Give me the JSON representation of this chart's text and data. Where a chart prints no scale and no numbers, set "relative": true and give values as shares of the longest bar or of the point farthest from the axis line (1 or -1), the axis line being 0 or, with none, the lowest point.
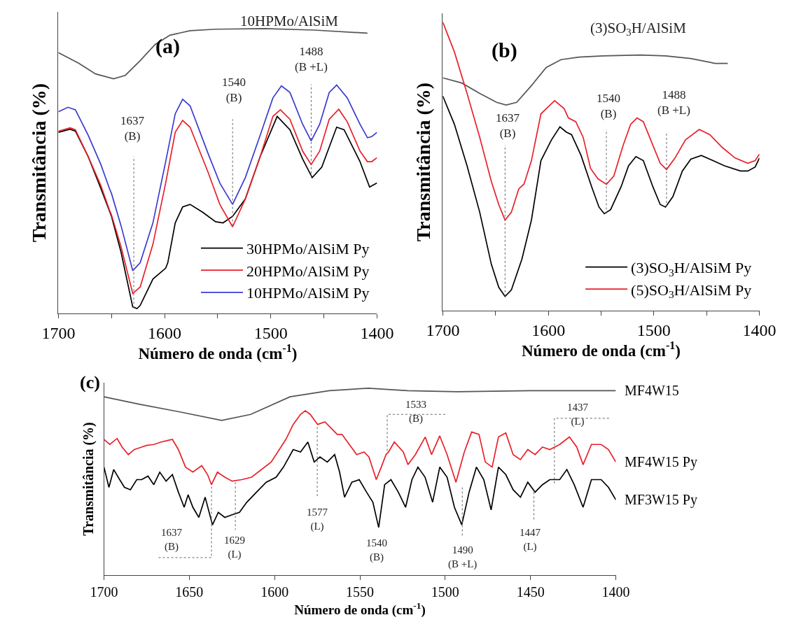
{
  "chart_data": [
    {
      "type": "line",
      "title": "(a)",
      "xlabel": "Número de onda (cm$^{-1}$)",
      "ylabel": "Transmitância (%)",
      "relative": true,
      "legend": "bottom right",
      "xlim": [
        1700,
        1400
      ],
      "xticks": [
        1700,
        {
          "value": 1650,
          "label": null
        },
        1600,
        {
          "value": 1550,
          "label": null
        },
        1500,
        {
          "value": 1450,
          "label": null
        },
        1400
      ],
      "annotations": [
        "10HPMo/AlSiM",
        "1637\n(B)",
        "1540\n(B)",
        "1488\n(B +L)"
      ],
      "series": [
        {
          "color": "#555555",
          "x": [
            1700,
            1681,
            1665,
            1648,
            1637,
            1623,
            1609,
            1595,
            1576,
            1552,
            1506,
            1459,
            1409
          ],
          "values": [
            0.916,
            0.879,
            0.841,
            0.824,
            0.836,
            0.888,
            0.944,
            0.977,
            0.993,
            0.998,
            1.0,
            0.995,
            0.984
          ]
        },
        {
          "name": "30HPMo/AlSiM Py",
          "color": "#000000",
          "x": [
            1700,
            1689,
            1684,
            1672,
            1660,
            1650,
            1641,
            1630,
            1626,
            1623,
            1611,
            1599,
            1597,
            1590,
            1583,
            1576,
            1564,
            1552,
            1545,
            1536,
            1524,
            1510,
            1494,
            1482,
            1470,
            1461,
            1452,
            1438,
            1431,
            1416,
            1407,
            1400
          ],
          "values": [
            0.636,
            0.647,
            0.64,
            0.551,
            0.439,
            0.341,
            0.215,
            0.023,
            0.017,
            0.028,
            0.121,
            0.159,
            0.178,
            0.318,
            0.374,
            0.383,
            0.355,
            0.322,
            0.318,
            0.341,
            0.402,
            0.551,
            0.692,
            0.645,
            0.542,
            0.477,
            0.514,
            0.654,
            0.645,
            0.533,
            0.444,
            0.458
          ]
        },
        {
          "name": "20HPMo/AlSiM Py",
          "color": "#e8212a",
          "x": [
            1700,
            1689,
            1684,
            1672,
            1660,
            1652,
            1650,
            1641,
            1630,
            1623,
            1611,
            1599,
            1590,
            1583,
            1576,
            1559,
            1548,
            1536,
            1524,
            1510,
            1498,
            1491,
            1482,
            1470,
            1462,
            1454,
            1445,
            1436,
            1428,
            1416,
            1409,
            1405,
            1400
          ],
          "values": [
            0.64,
            0.652,
            0.645,
            0.551,
            0.449,
            0.364,
            0.346,
            0.234,
            0.07,
            0.093,
            0.243,
            0.458,
            0.636,
            0.678,
            0.654,
            0.495,
            0.383,
            0.304,
            0.402,
            0.551,
            0.692,
            0.715,
            0.682,
            0.57,
            0.523,
            0.57,
            0.682,
            0.717,
            0.673,
            0.57,
            0.533,
            0.533,
            0.547
          ]
        },
        {
          "name": "10HPMo/AlSiM Py",
          "color": "#3b3bd0",
          "x": [
            1700,
            1691,
            1684,
            1672,
            1660,
            1652,
            1650,
            1641,
            1630,
            1623,
            1611,
            1599,
            1590,
            1583,
            1576,
            1559,
            1548,
            1536,
            1524,
            1510,
            1498,
            1490,
            1482,
            1470,
            1462,
            1454,
            1445,
            1438,
            1428,
            1416,
            1409,
            1405,
            1400
          ],
          "values": [
            0.708,
            0.724,
            0.715,
            0.626,
            0.523,
            0.439,
            0.421,
            0.308,
            0.15,
            0.178,
            0.318,
            0.533,
            0.701,
            0.752,
            0.729,
            0.561,
            0.458,
            0.383,
            0.477,
            0.626,
            0.757,
            0.799,
            0.776,
            0.664,
            0.606,
            0.664,
            0.776,
            0.802,
            0.757,
            0.664,
            0.617,
            0.621,
            0.636
          ]
        },
        {
          "color": "#666666",
          "line_style": "dotted",
          "x": [
            1629,
            1629,
            null,
            1536,
            1536,
            null,
            1462,
            1462
          ],
          "values": [
            0.019,
            0.551,
            null,
            0.308,
            0.682,
            null,
            0.477,
            0.804
          ]
        }
      ]
    },
    {
      "type": "line",
      "title": "(b)",
      "xlabel": "Número de onda (cm$^{-1}$)",
      "ylabel": "Transmitância (%)",
      "relative": true,
      "legend": "bottom right",
      "xlim": [
        1700,
        1400
      ],
      "xticks": [
        1700,
        {
          "value": 1650,
          "label": null
        },
        1600,
        {
          "value": 1550,
          "label": null
        },
        1500,
        {
          "value": 1450,
          "label": null
        },
        1400
      ],
      "annotations": [
        "(3)SO$_{3}$H/AlSiM",
        "1637\n(B)",
        "1540\n(B)",
        "1488\n(B +L)"
      ],
      "series": [
        {
          "color": "#555555",
          "x": [
            1700,
            1682,
            1665,
            1649,
            1640,
            1630,
            1616,
            1602,
            1588,
            1571,
            1548,
            1513,
            1489,
            1465,
            1442,
            1430
          ],
          "values": [
            0.807,
            0.789,
            0.753,
            0.722,
            0.713,
            0.722,
            0.78,
            0.843,
            0.87,
            0.879,
            0.883,
            0.886,
            0.883,
            0.874,
            0.857,
            0.857
          ]
        },
        {
          "name": "(3)SO$_{3}$H/AlSiM Py",
          "color": "#000000",
          "x": [
            1700,
            1689,
            1677,
            1665,
            1654,
            1647,
            1641,
            1635,
            1625,
            1616,
            1607,
            1597,
            1589,
            1583,
            1578,
            1569,
            1559,
            1552,
            1547,
            1541,
            1531,
            1524,
            1517,
            1510,
            1501,
            1494,
            1489,
            1482,
            1473,
            1465,
            1455,
            1444,
            1433,
            1418,
            1411,
            1404,
            1400
          ],
          "values": [
            0.744,
            0.646,
            0.502,
            0.341,
            0.161,
            0.081,
            0.049,
            0.072,
            0.179,
            0.314,
            0.52,
            0.592,
            0.637,
            0.619,
            0.61,
            0.538,
            0.43,
            0.359,
            0.336,
            0.35,
            0.43,
            0.502,
            0.534,
            0.52,
            0.43,
            0.368,
            0.359,
            0.395,
            0.484,
            0.525,
            0.538,
            0.52,
            0.502,
            0.484,
            0.484,
            0.498,
            0.529
          ]
        },
        {
          "name": "(5)SO$_{3}$H/AlSiM Py",
          "color": "#e8212a",
          "x": [
            1700,
            1689,
            1677,
            1665,
            1654,
            1647,
            1641,
            1635,
            1628,
            1623,
            1616,
            1607,
            1602,
            1594,
            1585,
            1581,
            1574,
            1567,
            1560,
            1553,
            1545,
            1538,
            1529,
            1522,
            1516,
            1510,
            1501,
            1494,
            1488,
            1480,
            1470,
            1457,
            1447,
            1435,
            1423,
            1411,
            1404,
            1400
          ],
          "values": [
            1.0,
            0.897,
            0.753,
            0.601,
            0.448,
            0.368,
            0.314,
            0.341,
            0.422,
            0.439,
            0.52,
            0.682,
            0.7,
            0.728,
            0.7,
            0.668,
            0.655,
            0.601,
            0.493,
            0.457,
            0.438,
            0.466,
            0.574,
            0.646,
            0.668,
            0.655,
            0.574,
            0.511,
            0.489,
            0.529,
            0.592,
            0.628,
            0.61,
            0.565,
            0.529,
            0.511,
            0.52,
            0.543
          ]
        },
        {
          "color": "#666666",
          "line_style": "dotted",
          "x": [
            1641,
            1641,
            null,
            1545,
            1545,
            null,
            1488,
            1488
          ],
          "values": [
            0.049,
            0.574,
            null,
            0.336,
            0.628,
            null,
            0.359,
            0.614
          ]
        }
      ]
    },
    {
      "type": "line",
      "title": "(c)",
      "xlabel": "Número de onda (cm$^{-1}$)",
      "ylabel": "Transmitância (%)",
      "relative": true,
      "xlim": [
        1700,
        1400
      ],
      "xticks": [
        1700,
        1650,
        1600,
        1550,
        1500,
        1450,
        1400
      ],
      "annotations": [
        "1637\n(B)",
        "1629\n(L)",
        "1577\n(L)",
        "1540\n(B)",
        "1533\n(B)",
        "1490\n(B +L)",
        "1447\n(L)",
        "1437\n(L)"
      ],
      "series": [
        {
          "name": "MF4W15",
          "color": "#555555",
          "x": [
            1700,
            1679,
            1656,
            1631,
            1614,
            1591,
            1568,
            1545,
            1522,
            1493,
            1450,
            1400
          ],
          "values": [
            0.954,
            0.914,
            0.874,
            0.828,
            0.86,
            0.954,
            0.987,
            1.0,
            0.987,
            0.981,
            0.987,
            0.987
          ]
        },
        {
          "name": "MF4W15 Py",
          "color": "#e8212a",
          "x": [
            1700,
            1696.6,
            1692.3,
            1689.4,
            1685.7,
            1682.2,
            1677.9,
            1675.1,
            1670.8,
            1666.5,
            1662.8,
            1659.9,
            1656.4,
            1652.2,
            1647.9,
            1642.7,
            1639.3,
            1637,
            1633.5,
            1629.2,
            1624.9,
            1619.2,
            1613.5,
            1602,
            1593.4,
            1589.1,
            1584.8,
            1582,
            1579.1,
            1574.8,
            1570.5,
            1566.2,
            1563.3,
            1560.5,
            1556.2,
            1551.9,
            1547.6,
            1544.7,
            1540.4,
            1537.5,
            1534.7,
            1533.2,
            1529.8,
            1524.6,
            1521.8,
            1517.5,
            1511.7,
            1508,
            1503.2,
            1498.9,
            1493.7,
            1488.8,
            1484.5,
            1480.2,
            1476.5,
            1472.5,
            1468.8,
            1464.5,
            1460.2,
            1455.9,
            1451.6,
            1447.3,
            1443,
            1438.7,
            1432.9,
            1427.2,
            1422.9,
            1419.2,
            1414.3,
            1408.6,
            1404.3,
            1400
          ],
          "values": [
            0.726,
            0.699,
            0.731,
            0.685,
            0.645,
            0.672,
            0.685,
            0.694,
            0.699,
            0.712,
            0.72,
            0.726,
            0.672,
            0.578,
            0.551,
            0.586,
            0.538,
            0.484,
            0.551,
            0.524,
            0.503,
            0.511,
            0.524,
            0.605,
            0.726,
            0.806,
            0.86,
            0.879,
            0.86,
            0.806,
            0.82,
            0.78,
            0.753,
            0.753,
            0.699,
            0.645,
            0.659,
            0.632,
            0.511,
            0.578,
            0.645,
            0.659,
            0.712,
            0.659,
            0.591,
            0.645,
            0.739,
            0.645,
            0.745,
            0.645,
            0.497,
            0.659,
            0.766,
            0.753,
            0.605,
            0.578,
            0.739,
            0.761,
            0.645,
            0.618,
            0.672,
            0.645,
            0.685,
            0.672,
            0.699,
            0.739,
            0.685,
            0.591,
            0.699,
            0.699,
            0.672,
            0.605
          ]
        },
        {
          "name": "MF3W15 Py",
          "color": "#000000",
          "x": [
            1700,
            1697.1,
            1694.3,
            1690.8,
            1688,
            1684.5,
            1680.8,
            1677.9,
            1674.2,
            1670.8,
            1667.3,
            1663.6,
            1659.9,
            1656.4,
            1653,
            1650.7,
            1647.9,
            1644.4,
            1640.7,
            1636.4,
            1633,
            1629.2,
            1624.9,
            1620.6,
            1616.3,
            1610.6,
            1604.9,
            1599.1,
            1594.8,
            1589.1,
            1584.8,
            1580.5,
            1576.8,
            1573.4,
            1569.1,
            1564.8,
            1561.9,
            1559,
            1554.7,
            1550.4,
            1546.1,
            1542.4,
            1539,
            1535.5,
            1531.8,
            1527.5,
            1523.2,
            1519.5,
            1516,
            1511.8,
            1507.4,
            1503.2,
            1498.9,
            1494.6,
            1490.3,
            1486,
            1481.7,
            1477.4,
            1473.1,
            1468.8,
            1464.5,
            1460.2,
            1455.9,
            1451.6,
            1447.3,
            1443,
            1438.7,
            1432.9,
            1428.7,
            1424.4,
            1419.2,
            1414.3,
            1408.6,
            1404.3,
            1400
          ],
          "values": [
            0.578,
            0.47,
            0.565,
            0.511,
            0.47,
            0.457,
            0.511,
            0.511,
            0.53,
            0.484,
            0.551,
            0.503,
            0.538,
            0.444,
            0.363,
            0.43,
            0.363,
            0.309,
            0.417,
            0.269,
            0.336,
            0.309,
            0.323,
            0.336,
            0.39,
            0.444,
            0.497,
            0.524,
            0.578,
            0.672,
            0.659,
            0.712,
            0.605,
            0.632,
            0.605,
            0.645,
            0.551,
            0.417,
            0.497,
            0.511,
            0.444,
            0.39,
            0.255,
            0.484,
            0.511,
            0.444,
            0.363,
            0.511,
            0.578,
            0.524,
            0.39,
            0.578,
            0.524,
            0.363,
            0.269,
            0.444,
            0.578,
            0.511,
            0.349,
            0.578,
            0.538,
            0.457,
            0.417,
            0.497,
            0.444,
            0.484,
            0.511,
            0.511,
            0.565,
            0.484,
            0.363,
            0.511,
            0.511,
            0.47,
            0.403
          ]
        },
        {
          "color": "#666666",
          "line_style": "dotted",
          "x": [
            1668,
            1637,
            1637,
            null,
            1623,
            1623,
            null,
            1575,
            1575,
            null,
            1500,
            1534,
            1534,
            null,
            1490,
            1490,
            null,
            1448,
            1448,
            null,
            1404,
            1436,
            1436
          ],
          "values": [
            0.094,
            0.094,
            0.484,
            null,
            0.497,
            0.242,
            null,
            0.793,
            0.417,
            null,
            0.86,
            0.86,
            0.659,
            null,
            0.47,
            0.202,
            null,
            0.444,
            0.296,
            null,
            0.839,
            0.839,
            0.484
          ]
        }
      ]
    }
  ]
}
